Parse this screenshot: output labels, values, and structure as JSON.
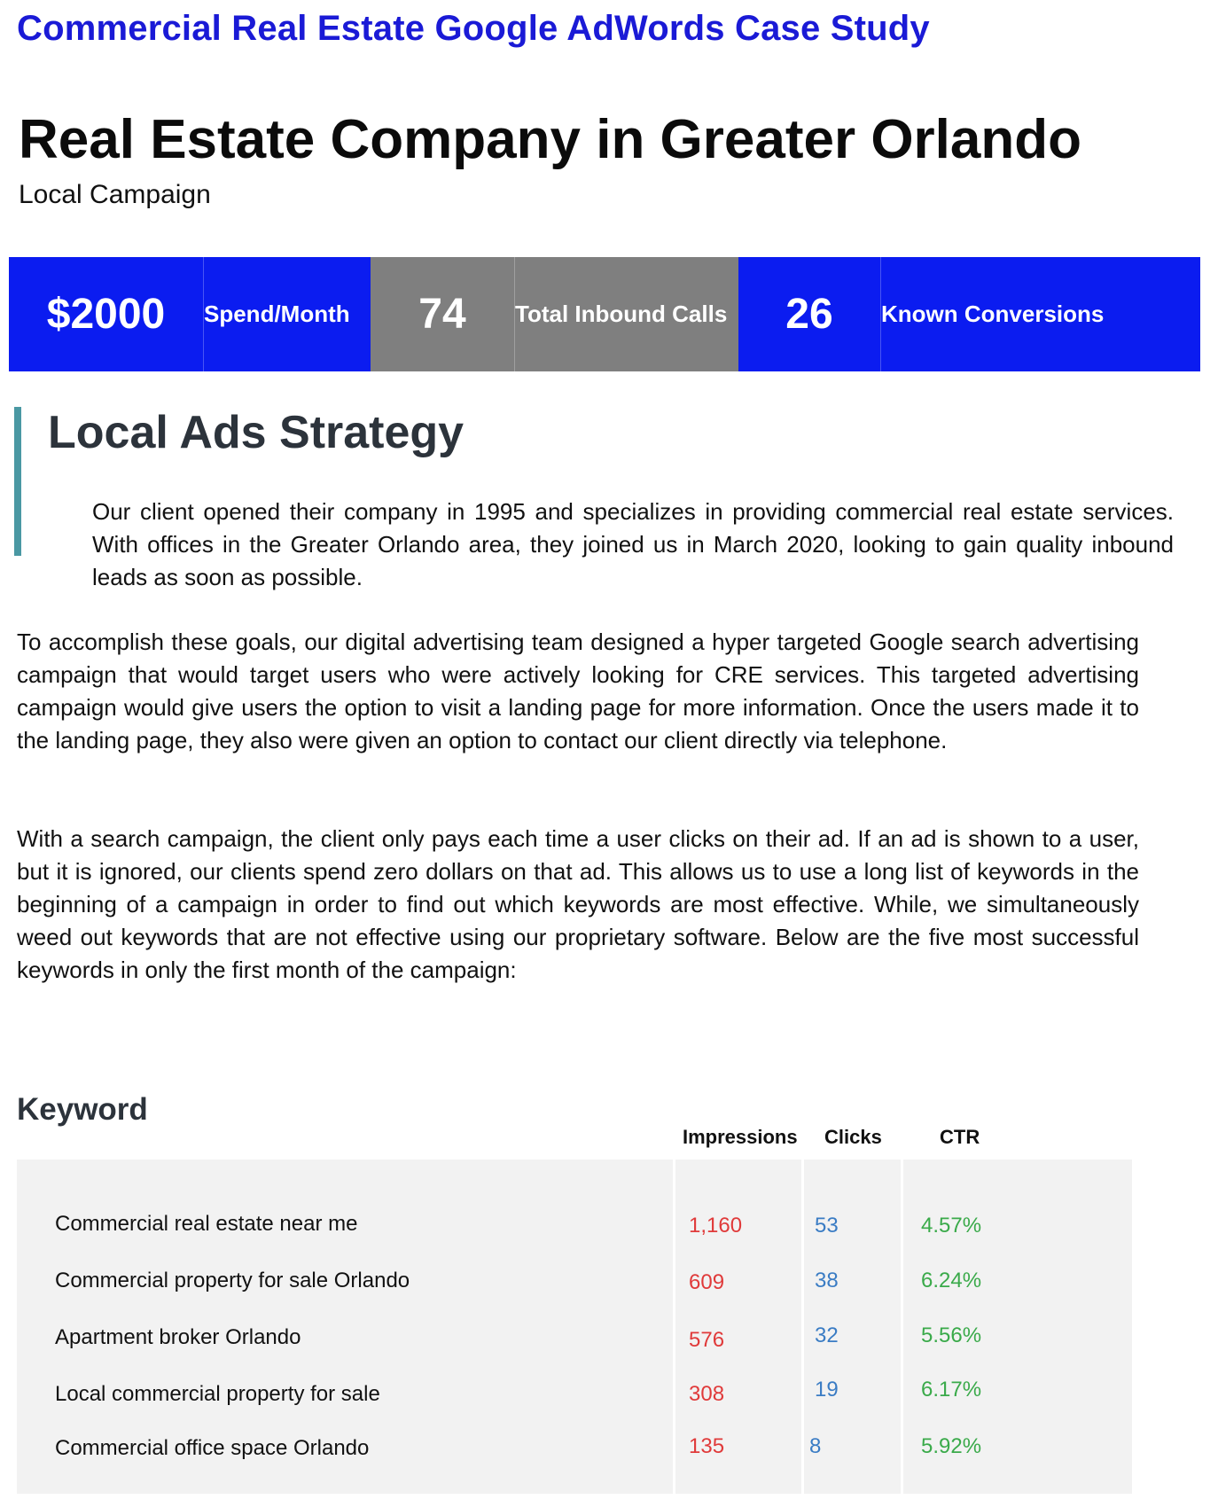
{
  "header": {
    "top_title": "Commercial Real Estate Google AdWords Case Study",
    "main_title": "Real Estate Company in Greater Orlando",
    "subtitle": "Local Campaign"
  },
  "stats": [
    {
      "value": "$2000",
      "label": "Spend/Month",
      "color": "#0b1cf0"
    },
    {
      "value": "74",
      "label": "Total Inbound Calls",
      "color": "#7f7f7f"
    },
    {
      "value": "26",
      "label": "Known Conversions",
      "color": "#0b1cf0"
    }
  ],
  "strategy": {
    "title": "Local Ads Strategy",
    "paragraphs": [
      "Our client opened their company in 1995 and specializes in providing commercial real estate services. With offices in the Greater Orlando area, they joined us in March 2020, looking to gain quality inbound leads as soon as possible.",
      "To accomplish these goals, our digital advertising team designed a hyper targeted Google search advertising campaign that would target users who were actively looking for CRE services. This targeted advertising campaign would give users the option to visit a landing page for more information. Once the users made it to the landing page, they also were given an option to contact our client directly via telephone.",
      "With a search campaign, the client only pays each time a user clicks on their ad. If an ad is shown to a user, but it is ignored, our clients spend zero dollars on that ad. This allows us to use a long list of keywords in the beginning of a campaign in order to find out which keywords are most effective. While, we simultaneously weed out keywords that are not effective using our proprietary software. Below are the five most successful keywords in only the first month of the campaign:"
    ]
  },
  "keywords_table": {
    "heading": "Keyword",
    "columns": [
      "Impressions",
      "Clicks",
      "CTR"
    ],
    "rows": [
      {
        "keyword": "Commercial real estate near me",
        "impressions": "1,160",
        "clicks": "53",
        "ctr": "4.57%"
      },
      {
        "keyword": "Commercial property for sale Orlando",
        "impressions": "609",
        "clicks": "38",
        "ctr": "6.24%"
      },
      {
        "keyword": "Apartment broker Orlando",
        "impressions": "576",
        "clicks": "32",
        "ctr": "5.56%"
      },
      {
        "keyword": "Local commercial property for sale",
        "impressions": "308",
        "clicks": "19",
        "ctr": "6.17%"
      },
      {
        "keyword": "Commercial office space Orlando",
        "impressions": "135",
        "clicks": "8",
        "ctr": "5.92%"
      }
    ],
    "colors": {
      "impressions": "#e03a3a",
      "clicks": "#3a7cc4",
      "ctr": "#3aaa4a"
    }
  }
}
